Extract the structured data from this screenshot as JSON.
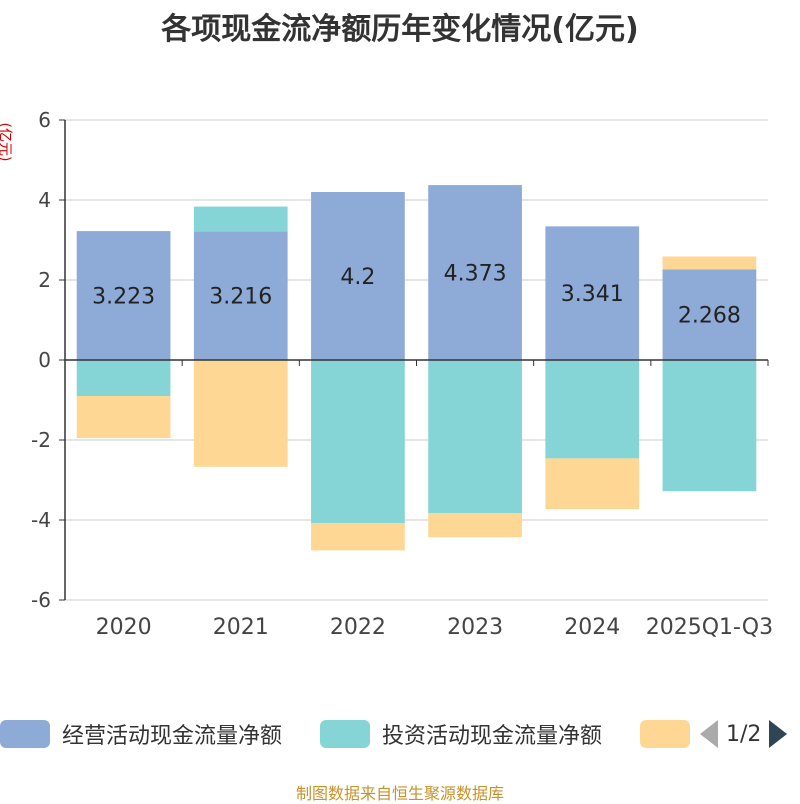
{
  "chart_data": {
    "type": "bar",
    "stacked": true,
    "title": "各项现金流净额历年变化情况(亿元)",
    "ylabel": "(亿元)",
    "ylim": [
      -6,
      6
    ],
    "yticks": [
      6,
      4,
      2,
      0,
      -2,
      -4,
      -6
    ],
    "categories": [
      "2020",
      "2021",
      "2022",
      "2023",
      "2024",
      "2025Q1-Q3"
    ],
    "series": [
      {
        "name": "经营活动现金流量净额",
        "color": "#8eabd7",
        "values": [
          3.223,
          3.216,
          4.2,
          4.373,
          3.341,
          2.268
        ],
        "labels": [
          "3.223",
          "3.216",
          "4.2",
          "4.373",
          "3.341",
          "2.268"
        ]
      },
      {
        "name": "投资活动现金流量净额",
        "color": "#85d5d6",
        "values": [
          -0.9,
          0.62,
          -4.08,
          -3.83,
          -2.46,
          -3.28
        ]
      },
      {
        "name": "",
        "color": "#fed795",
        "values": [
          -1.05,
          -2.67,
          -0.68,
          -0.6,
          -1.27,
          0.32
        ]
      }
    ]
  },
  "legend": {
    "item1": "经营活动现金流量净额",
    "item2": "投资活动现金流量净额",
    "page": "1/2"
  },
  "source": "制图数据来自恒生聚源数据库"
}
